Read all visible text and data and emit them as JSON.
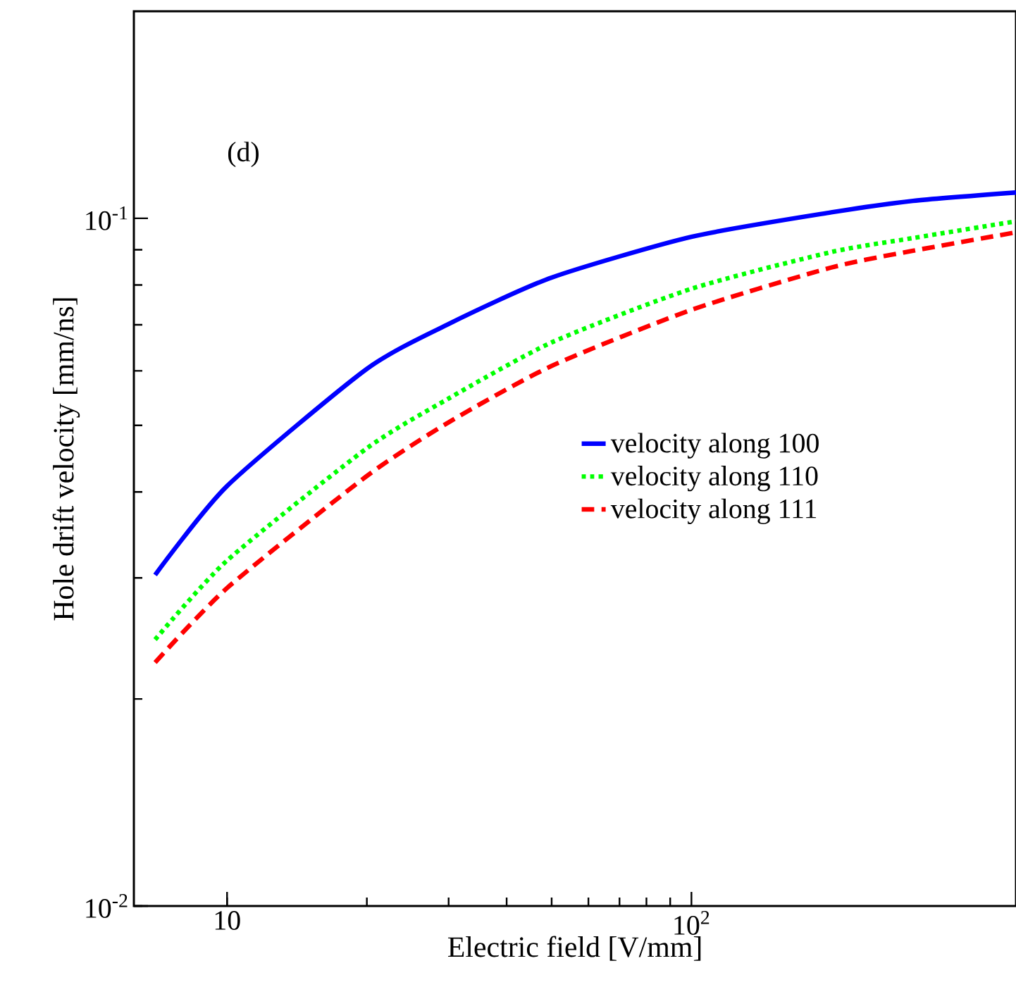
{
  "chart_data": {
    "type": "line",
    "xlabel": "Electric field [V/mm]",
    "ylabel": "Hole drift velocity [mm/ns]",
    "annotations": [
      "(d)"
    ],
    "log": "xy",
    "legend": "right",
    "marker": "none",
    "xlim": [
      6.3,
      500
    ],
    "ylim": [
      0.01,
      0.2
    ],
    "xticks": [
      {
        "value": 10,
        "label": "10"
      },
      {
        "value": 100,
        "label": "10$^{2}$"
      }
    ],
    "yticks": [
      {
        "value": 0.01,
        "label": "10$^{-2}$"
      },
      {
        "value": 0.1,
        "label": "10$^{-1}$"
      }
    ],
    "x": [
      7,
      10,
      20,
      30,
      50,
      100,
      200,
      300,
      500
    ],
    "series": [
      {
        "name": "velocity along 100",
        "color": "#0000ff",
        "line_style": "solid",
        "values": [
          0.0303,
          0.0408,
          0.0604,
          0.0702,
          0.082,
          0.094,
          0.102,
          0.106,
          0.109
        ]
      },
      {
        "name": "velocity along 110",
        "color": "#00ff00",
        "line_style": "dotted",
        "values": [
          0.0244,
          0.0318,
          0.0463,
          0.0547,
          0.066,
          0.079,
          0.0893,
          0.0936,
          0.099
        ]
      },
      {
        "name": "velocity along 111",
        "color": "#ff0000",
        "line_style": "dashed",
        "values": [
          0.0226,
          0.029,
          0.0422,
          0.0505,
          0.061,
          0.0736,
          0.0848,
          0.0897,
          0.0954
        ]
      }
    ]
  }
}
